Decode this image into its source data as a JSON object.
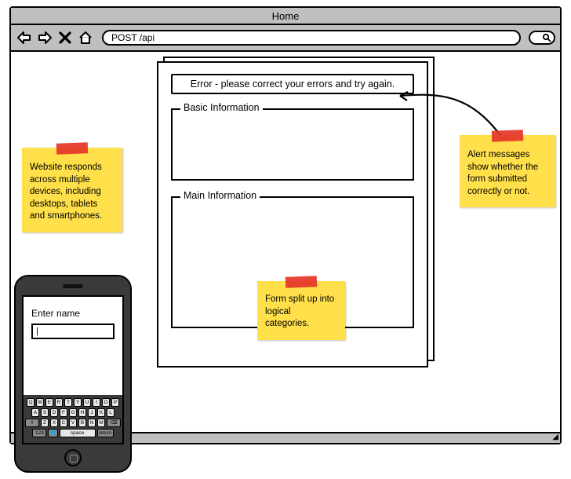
{
  "browser": {
    "title": "Home",
    "url": "POST /api",
    "nav_icons": [
      "back-arrow",
      "forward-arrow",
      "stop-x",
      "home-house"
    ]
  },
  "alert_text": "Error - please correct your errors and try again.",
  "fieldsets": {
    "basic": {
      "legend": "Basic Information"
    },
    "main": {
      "legend": "Main Information"
    }
  },
  "stickies": {
    "responsive": "Website responds across multiple devices, including desktops, tablets and smartphones.",
    "alerts": "Alert messages show whether the form submitted correctly or not.",
    "categories": "Form split up into logical categories."
  },
  "phone": {
    "label": "Enter name",
    "input_value": "|",
    "keyboard": {
      "row1": [
        "Q",
        "W",
        "E",
        "R",
        "T",
        "Y",
        "U",
        "I",
        "O",
        "P"
      ],
      "row2": [
        "A",
        "S",
        "D",
        "F",
        "G",
        "H",
        "J",
        "K",
        "L"
      ],
      "row3_shift": "⇧",
      "row3": [
        "Z",
        "X",
        "C",
        "V",
        "B",
        "N",
        "M"
      ],
      "row3_del": "⌫",
      "row4": {
        "num": "123",
        "globe": "🌐",
        "space": "space",
        "ret": "return"
      }
    }
  },
  "colors": {
    "chrome_gray": "#bfbfbf",
    "sticky_yellow": "#ffdf4a",
    "tape_red": "#e53528",
    "phone_body": "#3a3a3a"
  }
}
